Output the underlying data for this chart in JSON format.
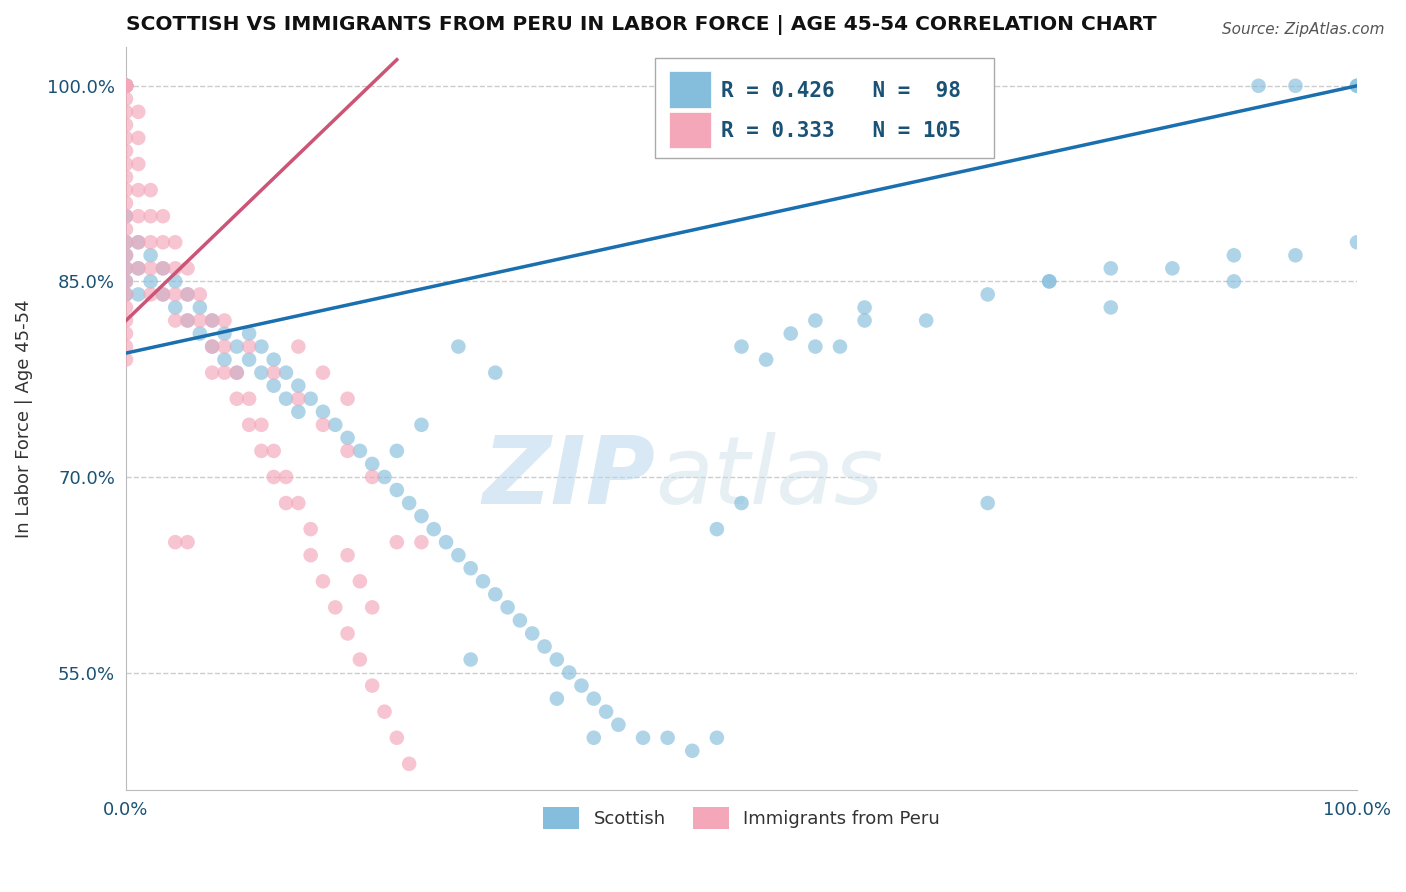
{
  "title": "SCOTTISH VS IMMIGRANTS FROM PERU IN LABOR FORCE | AGE 45-54 CORRELATION CHART",
  "source_text": "Source: ZipAtlas.com",
  "ylabel": "In Labor Force | Age 45-54",
  "xlim": [
    0.0,
    1.0
  ],
  "ylim": [
    0.46,
    1.03
  ],
  "yticks": [
    0.55,
    0.7,
    0.85,
    1.0
  ],
  "ytick_labels": [
    "55.0%",
    "70.0%",
    "85.0%",
    "100.0%"
  ],
  "xtick_positions": [
    0.0,
    1.0
  ],
  "xtick_labels": [
    "0.0%",
    "100.0%"
  ],
  "legend_R_blue": "R = 0.426",
  "legend_N_blue": "N =  98",
  "legend_R_pink": "R = 0.333",
  "legend_N_pink": "N = 105",
  "blue_color": "#85bedc",
  "pink_color": "#f4a7b9",
  "trendline_blue": "#1a6faf",
  "trendline_pink": "#cc5577",
  "watermark_zip": "ZIP",
  "watermark_atlas": "atlas",
  "blue_x": [
    0.0,
    0.0,
    0.0,
    0.0,
    0.0,
    0.0,
    0.01,
    0.01,
    0.01,
    0.02,
    0.02,
    0.03,
    0.03,
    0.04,
    0.04,
    0.05,
    0.05,
    0.06,
    0.06,
    0.07,
    0.07,
    0.08,
    0.08,
    0.09,
    0.09,
    0.1,
    0.1,
    0.11,
    0.11,
    0.12,
    0.12,
    0.13,
    0.13,
    0.14,
    0.14,
    0.15,
    0.16,
    0.17,
    0.18,
    0.19,
    0.2,
    0.21,
    0.22,
    0.23,
    0.24,
    0.25,
    0.26,
    0.27,
    0.28,
    0.29,
    0.3,
    0.31,
    0.32,
    0.33,
    0.34,
    0.35,
    0.36,
    0.37,
    0.38,
    0.39,
    0.4,
    0.42,
    0.44,
    0.46,
    0.48,
    0.5,
    0.52,
    0.54,
    0.56,
    0.58,
    0.6,
    0.65,
    0.7,
    0.75,
    0.8,
    0.85,
    0.9,
    0.95,
    1.0,
    0.28,
    0.35,
    0.38,
    0.48,
    0.5,
    0.56,
    0.6,
    0.7,
    0.75,
    0.8,
    0.9,
    0.92,
    0.95,
    1.0,
    1.0,
    0.22,
    0.24,
    0.27,
    0.3
  ],
  "blue_y": [
    0.84,
    0.86,
    0.88,
    0.85,
    0.87,
    0.9,
    0.86,
    0.88,
    0.84,
    0.85,
    0.87,
    0.84,
    0.86,
    0.83,
    0.85,
    0.82,
    0.84,
    0.81,
    0.83,
    0.8,
    0.82,
    0.79,
    0.81,
    0.78,
    0.8,
    0.79,
    0.81,
    0.78,
    0.8,
    0.77,
    0.79,
    0.76,
    0.78,
    0.75,
    0.77,
    0.76,
    0.75,
    0.74,
    0.73,
    0.72,
    0.71,
    0.7,
    0.69,
    0.68,
    0.67,
    0.66,
    0.65,
    0.64,
    0.63,
    0.62,
    0.61,
    0.6,
    0.59,
    0.58,
    0.57,
    0.56,
    0.55,
    0.54,
    0.53,
    0.52,
    0.51,
    0.5,
    0.5,
    0.49,
    0.5,
    0.8,
    0.79,
    0.81,
    0.82,
    0.8,
    0.83,
    0.82,
    0.84,
    0.85,
    0.83,
    0.86,
    0.85,
    0.87,
    1.0,
    0.56,
    0.53,
    0.5,
    0.66,
    0.68,
    0.8,
    0.82,
    0.68,
    0.85,
    0.86,
    0.87,
    1.0,
    1.0,
    0.88,
    1.0,
    0.72,
    0.74,
    0.8,
    0.78
  ],
  "pink_x": [
    0.0,
    0.0,
    0.0,
    0.0,
    0.0,
    0.0,
    0.0,
    0.0,
    0.0,
    0.0,
    0.0,
    0.0,
    0.0,
    0.0,
    0.0,
    0.0,
    0.0,
    0.0,
    0.0,
    0.0,
    0.0,
    0.0,
    0.0,
    0.0,
    0.0,
    0.0,
    0.0,
    0.0,
    0.0,
    0.0,
    0.0,
    0.0,
    0.0,
    0.0,
    0.0,
    0.0,
    0.0,
    0.01,
    0.01,
    0.01,
    0.01,
    0.01,
    0.01,
    0.01,
    0.02,
    0.02,
    0.02,
    0.02,
    0.02,
    0.03,
    0.03,
    0.03,
    0.03,
    0.04,
    0.04,
    0.04,
    0.04,
    0.05,
    0.05,
    0.05,
    0.06,
    0.06,
    0.07,
    0.07,
    0.07,
    0.08,
    0.08,
    0.09,
    0.09,
    0.1,
    0.1,
    0.11,
    0.11,
    0.12,
    0.12,
    0.13,
    0.13,
    0.14,
    0.15,
    0.15,
    0.16,
    0.17,
    0.18,
    0.19,
    0.2,
    0.21,
    0.22,
    0.23,
    0.04,
    0.05,
    0.22,
    0.24,
    0.14,
    0.16,
    0.18,
    0.18,
    0.19,
    0.2,
    0.08,
    0.1,
    0.12,
    0.14,
    0.16,
    0.18,
    0.2
  ],
  "pink_y": [
    1.0,
    1.0,
    1.0,
    1.0,
    1.0,
    1.0,
    1.0,
    1.0,
    1.0,
    1.0,
    1.0,
    1.0,
    1.0,
    1.0,
    1.0,
    1.0,
    0.99,
    0.98,
    0.97,
    0.96,
    0.95,
    0.94,
    0.93,
    0.92,
    0.91,
    0.9,
    0.89,
    0.88,
    0.87,
    0.86,
    0.85,
    0.84,
    0.83,
    0.82,
    0.81,
    0.8,
    0.79,
    0.98,
    0.96,
    0.94,
    0.92,
    0.9,
    0.88,
    0.86,
    0.92,
    0.9,
    0.88,
    0.86,
    0.84,
    0.9,
    0.88,
    0.86,
    0.84,
    0.88,
    0.86,
    0.84,
    0.82,
    0.86,
    0.84,
    0.82,
    0.84,
    0.82,
    0.82,
    0.8,
    0.78,
    0.8,
    0.78,
    0.78,
    0.76,
    0.76,
    0.74,
    0.74,
    0.72,
    0.72,
    0.7,
    0.7,
    0.68,
    0.68,
    0.66,
    0.64,
    0.62,
    0.6,
    0.58,
    0.56,
    0.54,
    0.52,
    0.5,
    0.48,
    0.65,
    0.65,
    0.65,
    0.65,
    0.8,
    0.78,
    0.76,
    0.64,
    0.62,
    0.6,
    0.82,
    0.8,
    0.78,
    0.76,
    0.74,
    0.72,
    0.7
  ]
}
